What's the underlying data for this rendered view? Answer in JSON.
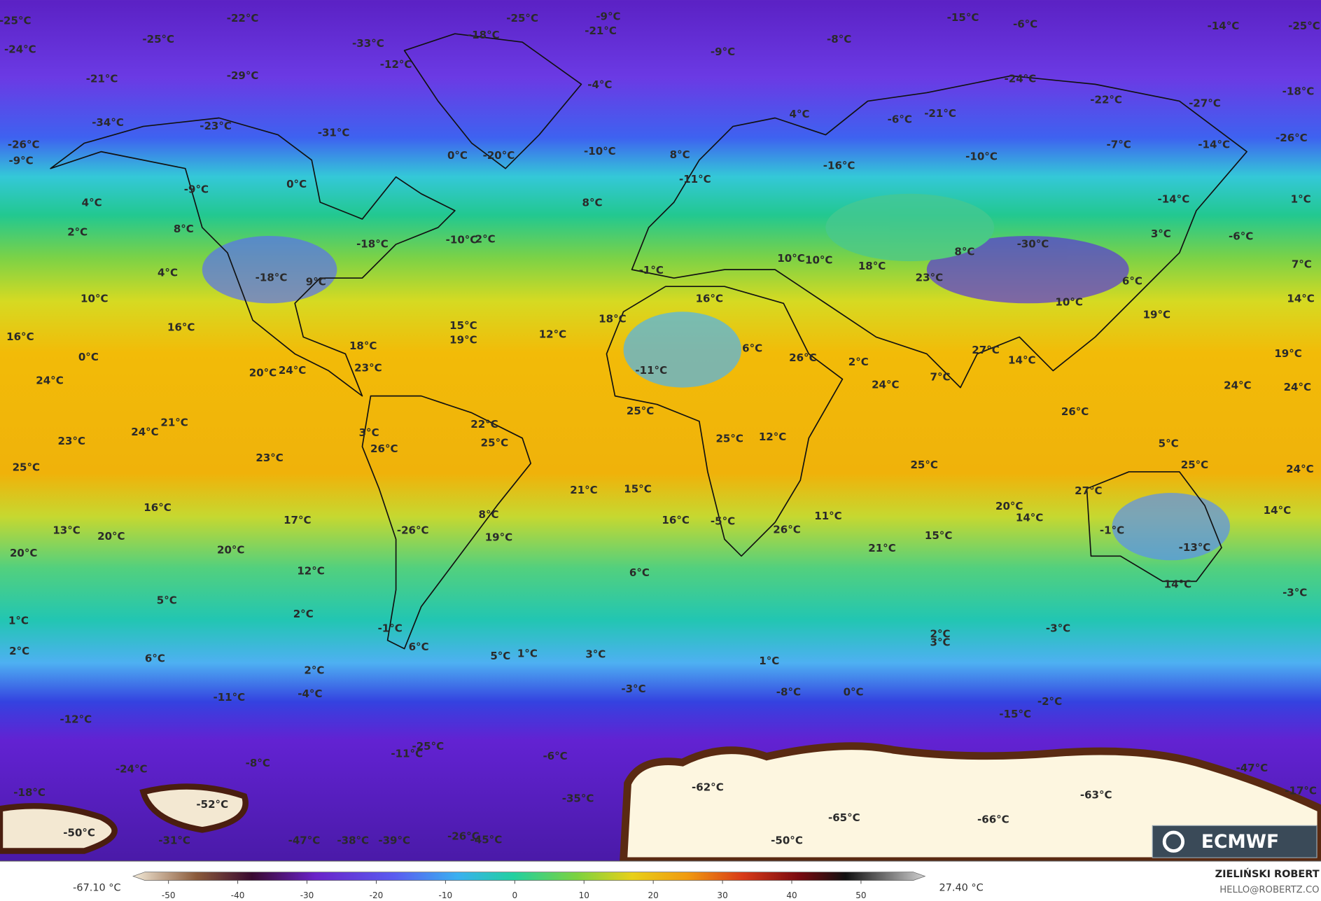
{
  "map": {
    "labels": [
      "-25°C",
      "-22°C",
      "-25°C",
      "-9°C",
      "-15°C",
      "-6°C",
      "-14°C",
      "-25°C",
      "-24°C",
      "-25°C",
      "-33°C",
      "-18°C",
      "-21°C",
      "-9°C",
      "-8°C",
      "-21°C",
      "-29°C",
      "-12°C",
      "-4°C",
      "-24°C",
      "-22°C",
      "-27°C",
      "-18°C",
      "-34°C",
      "-23°C",
      "-31°C",
      "4°C",
      "-6°C",
      "-21°C",
      "-26°C",
      "-26°C",
      "-9°C",
      "0°C",
      "-20°C",
      "-10°C",
      "8°C",
      "-7°C",
      "-10°C",
      "-14°C",
      "-16°C",
      "-9°C",
      "0°C",
      "-11°C",
      "4°C",
      "8°C",
      "-14°C",
      "1°C",
      "2°C",
      "8°C",
      "-18°C",
      "-10°C",
      "2°C",
      "-30°C",
      "3°C",
      "-6°C",
      "4°C",
      "-18°C",
      "9°C",
      "-1°C",
      "10°C",
      "10°C",
      "18°C",
      "8°C",
      "23°C",
      "6°C",
      "7°C",
      "10°C",
      "16°C",
      "10°C",
      "14°C",
      "19°C",
      "16°C",
      "15°C",
      "12°C",
      "18°C",
      "16°C",
      "19°C",
      "0°C",
      "18°C",
      "23°C",
      "6°C",
      "26°C",
      "2°C",
      "27°C",
      "14°C",
      "19°C",
      "24°C",
      "20°C",
      "24°C",
      "-11°C",
      "7°C",
      "24°C",
      "24°C",
      "24°C",
      "25°C",
      "26°C",
      "21°C",
      "24°C",
      "22°C",
      "23°C",
      "3°C",
      "26°C",
      "25°C",
      "25°C",
      "12°C",
      "5°C",
      "25°C",
      "23°C",
      "25°C",
      "25°C",
      "24°C",
      "21°C",
      "15°C",
      "27°C",
      "16°C",
      "8°C",
      "20°C",
      "14°C",
      "14°C",
      "17°C",
      "16°C",
      "-5°C",
      "11°C",
      "-26°C",
      "26°C",
      "-1°C",
      "15°C",
      "13°C",
      "20°C",
      "19°C",
      "-13°C",
      "20°C",
      "20°C",
      "21°C",
      "12°C",
      "6°C",
      "14°C",
      "-3°C",
      "5°C",
      "2°C",
      "1°C",
      "-1°C",
      "-3°C",
      "2°C",
      "3°C",
      "2°C",
      "6°C",
      "5°C",
      "1°C",
      "3°C",
      "6°C",
      "1°C",
      "2°C",
      "-3°C",
      "-8°C",
      "0°C",
      "-11°C",
      "-4°C",
      "-2°C",
      "-12°C",
      "-15°C",
      "-25°C",
      "-11°C",
      "-6°C",
      "-8°C",
      "-24°C",
      "-47°C",
      "-18°C",
      "-62°C",
      "-17°C",
      "-63°C",
      "-35°C",
      "-52°C",
      "-65°C",
      "-66°C",
      "-50°C",
      "-26°C",
      "-45°C",
      "-31°C",
      "-47°C",
      "-38°C",
      "-39°C",
      "-50°C"
    ]
  },
  "colorbar": {
    "min_label": "-67.10 °C",
    "max_label": "27.40 °C",
    "ticks": [
      -50,
      -40,
      -30,
      -20,
      -10,
      0,
      10,
      20,
      30,
      40,
      50
    ]
  },
  "branding": {
    "logo": "ECMWF",
    "author": "ZIELIŃSKI ROBERT",
    "contact": "HELLO@ROBERTZ.CO"
  }
}
